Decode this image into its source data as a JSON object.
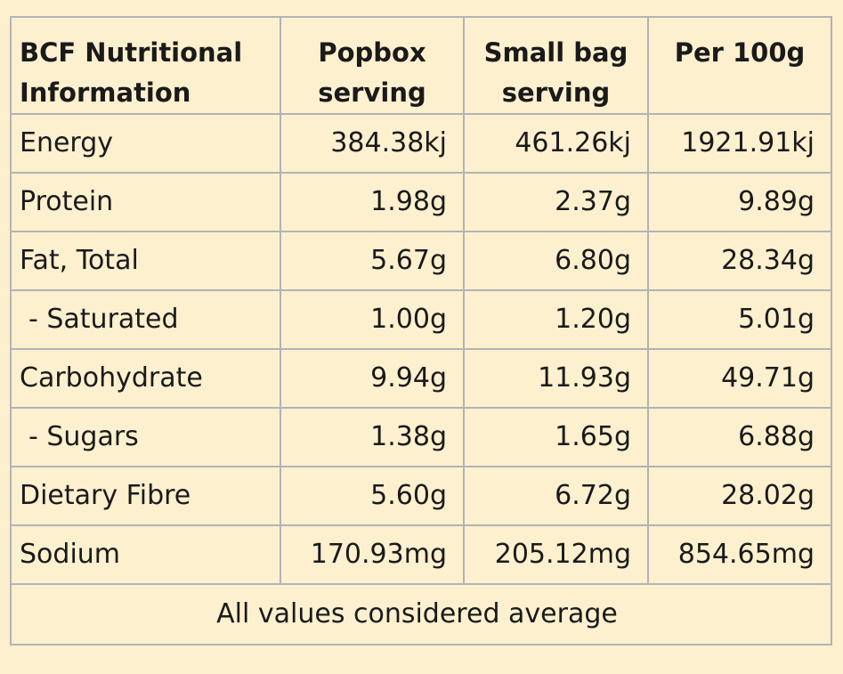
{
  "table": {
    "headers": [
      "BCF Nutritional Information",
      "Popbox serving",
      "Small bag serving",
      "Per 100g"
    ],
    "rows": [
      {
        "label": "Energy",
        "popbox": "384.38kj",
        "small_bag": "461.26kj",
        "per_100g": "1921.91kj",
        "indent": false
      },
      {
        "label": "Protein",
        "popbox": "1.98g",
        "small_bag": "2.37g",
        "per_100g": "9.89g",
        "indent": false
      },
      {
        "label": "Fat, Total",
        "popbox": "5.67g",
        "small_bag": "6.80g",
        "per_100g": "28.34g",
        "indent": false
      },
      {
        "label": "- Saturated",
        "popbox": "1.00g",
        "small_bag": "1.20g",
        "per_100g": "5.01g",
        "indent": true
      },
      {
        "label": "Carbohydrate",
        "popbox": "9.94g",
        "small_bag": "11.93g",
        "per_100g": "49.71g",
        "indent": false
      },
      {
        "label": "- Sugars",
        "popbox": "1.38g",
        "small_bag": "1.65g",
        "per_100g": "6.88g",
        "indent": true
      },
      {
        "label": "Dietary Fibre",
        "popbox": "5.60g",
        "small_bag": "6.72g",
        "per_100g": "28.02g",
        "indent": false
      },
      {
        "label": "Sodium",
        "popbox": "170.93mg",
        "small_bag": "205.12mg",
        "per_100g": "854.65mg",
        "indent": false
      }
    ],
    "footer": "All values considered average"
  },
  "colors": {
    "background": "#fdf0cf",
    "border": "#b3b3b3",
    "text": "#1a1a1a"
  }
}
